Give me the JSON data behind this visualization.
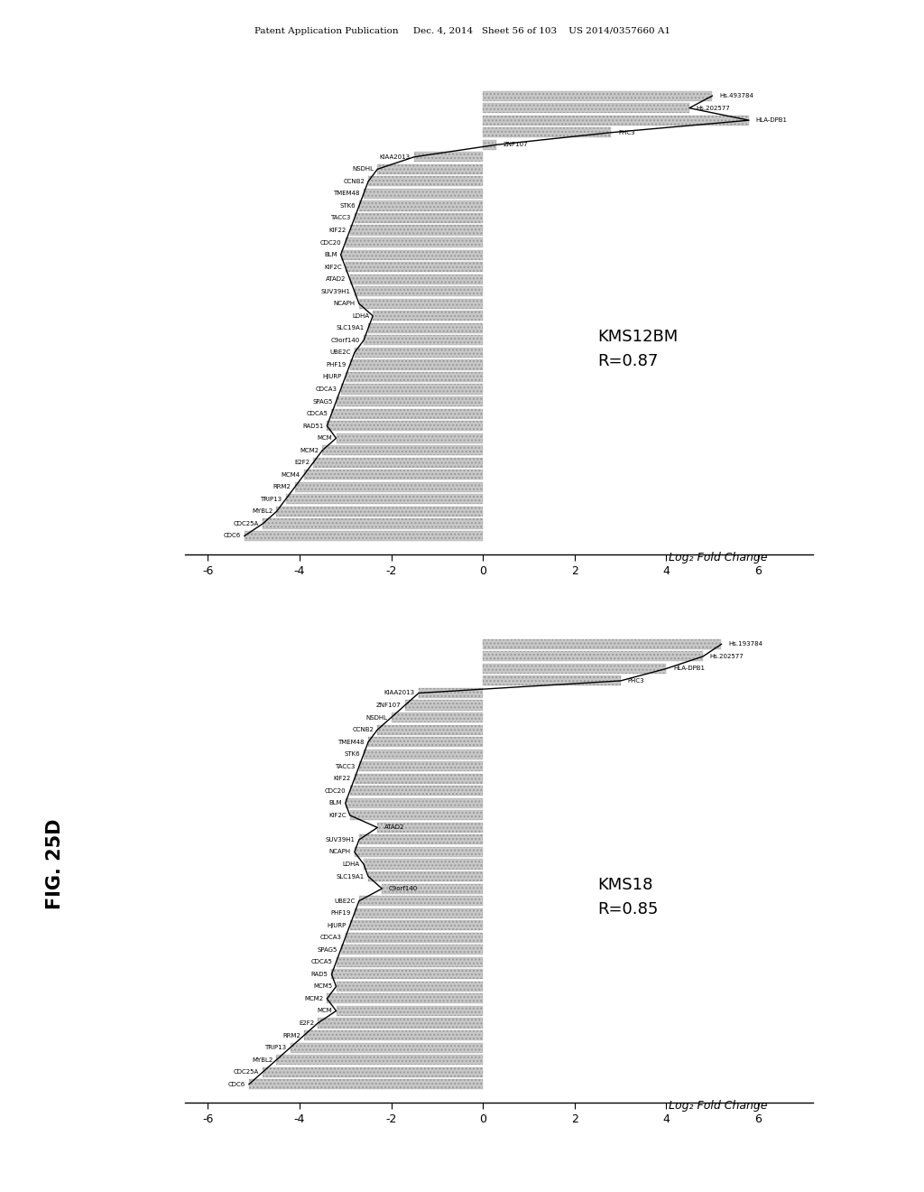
{
  "header_text": "Patent Application Publication     Dec. 4, 2014   Sheet 56 of 103    US 2014/0357660 A1",
  "fig_label": "FIG. 25D",
  "background_color": "#ffffff",
  "chart1": {
    "title_line1": "KMS12BM",
    "title_line2": "R=0.87",
    "xlabel": "Log₂ Fold Change",
    "genes": [
      {
        "name": "Hs.493784",
        "value": 5.0,
        "label_side": "right"
      },
      {
        "name": "Hs.202577",
        "value": 4.5,
        "label_side": "right"
      },
      {
        "name": "HLA-DPB1",
        "value": 5.8,
        "label_side": "right"
      },
      {
        "name": "PHC3",
        "value": 2.8,
        "label_side": "right"
      },
      {
        "name": "ZNF107",
        "value": 0.3,
        "label_side": "right"
      },
      {
        "name": "KIAA2013",
        "value": -1.5,
        "label_side": "left"
      },
      {
        "name": "NSDHL",
        "value": -2.3,
        "label_side": "left"
      },
      {
        "name": "CCNB2",
        "value": -2.5,
        "label_side": "left"
      },
      {
        "name": "TMEM48",
        "value": -2.6,
        "label_side": "left"
      },
      {
        "name": "STK6",
        "value": -2.7,
        "label_side": "left"
      },
      {
        "name": "TACC3",
        "value": -2.8,
        "label_side": "left"
      },
      {
        "name": "KIF22",
        "value": -2.9,
        "label_side": "left"
      },
      {
        "name": "CDC20",
        "value": -3.0,
        "label_side": "left"
      },
      {
        "name": "BLM",
        "value": -3.1,
        "label_side": "left"
      },
      {
        "name": "KIF2C",
        "value": -3.0,
        "label_side": "left"
      },
      {
        "name": "ATAD2",
        "value": -2.9,
        "label_side": "left"
      },
      {
        "name": "SUV39H1",
        "value": -2.8,
        "label_side": "left"
      },
      {
        "name": "NCAPH",
        "value": -2.7,
        "label_side": "left"
      },
      {
        "name": "LDHA",
        "value": -2.4,
        "label_side": "left"
      },
      {
        "name": "SLC19A1",
        "value": -2.5,
        "label_side": "left"
      },
      {
        "name": "C9orf140",
        "value": -2.6,
        "label_side": "left"
      },
      {
        "name": "UBE2C",
        "value": -2.8,
        "label_side": "left"
      },
      {
        "name": "PHF19",
        "value": -2.9,
        "label_side": "left"
      },
      {
        "name": "HJURP",
        "value": -3.0,
        "label_side": "left"
      },
      {
        "name": "CDCA3",
        "value": -3.1,
        "label_side": "left"
      },
      {
        "name": "SPAG5",
        "value": -3.2,
        "label_side": "left"
      },
      {
        "name": "CDCA5",
        "value": -3.3,
        "label_side": "left"
      },
      {
        "name": "RAD51",
        "value": -3.4,
        "label_side": "left"
      },
      {
        "name": "MCM",
        "value": -3.2,
        "label_side": "left"
      },
      {
        "name": "MCM2",
        "value": -3.5,
        "label_side": "left"
      },
      {
        "name": "E2F2",
        "value": -3.7,
        "label_side": "left"
      },
      {
        "name": "MCM4",
        "value": -3.9,
        "label_side": "left"
      },
      {
        "name": "RRM2",
        "value": -4.1,
        "label_side": "left"
      },
      {
        "name": "TRIP13",
        "value": -4.3,
        "label_side": "left"
      },
      {
        "name": "MYBL2",
        "value": -4.5,
        "label_side": "left"
      },
      {
        "name": "CDC25A",
        "value": -4.8,
        "label_side": "left"
      },
      {
        "name": "CDC6",
        "value": -5.2,
        "label_side": "left"
      }
    ]
  },
  "chart2": {
    "title_line1": "KMS18",
    "title_line2": "R=0.85",
    "xlabel": "Log₂ Fold Change",
    "genes": [
      {
        "name": "Hs.193784",
        "value": 5.2,
        "label_side": "right"
      },
      {
        "name": "Hs.202577",
        "value": 4.8,
        "label_side": "right"
      },
      {
        "name": "HLA-DPB1",
        "value": 4.0,
        "label_side": "right"
      },
      {
        "name": "PHC3",
        "value": 3.0,
        "label_side": "right"
      },
      {
        "name": "KIAA2013",
        "value": -1.4,
        "label_side": "left"
      },
      {
        "name": "ZNF107",
        "value": -1.7,
        "label_side": "left"
      },
      {
        "name": "NSDHL",
        "value": -2.0,
        "label_side": "left"
      },
      {
        "name": "CCNB2",
        "value": -2.3,
        "label_side": "left"
      },
      {
        "name": "TMEM48",
        "value": -2.5,
        "label_side": "left"
      },
      {
        "name": "STK6",
        "value": -2.6,
        "label_side": "left"
      },
      {
        "name": "TACC3",
        "value": -2.7,
        "label_side": "left"
      },
      {
        "name": "KIF22",
        "value": -2.8,
        "label_side": "left"
      },
      {
        "name": "CDC20",
        "value": -2.9,
        "label_side": "left"
      },
      {
        "name": "BLM",
        "value": -3.0,
        "label_side": "left"
      },
      {
        "name": "KIF2C",
        "value": -2.9,
        "label_side": "left"
      },
      {
        "name": "ATAD2",
        "value": -2.3,
        "label_side": "right"
      },
      {
        "name": "SUV39H1",
        "value": -2.7,
        "label_side": "left"
      },
      {
        "name": "NCAPH",
        "value": -2.8,
        "label_side": "left"
      },
      {
        "name": "LDHA",
        "value": -2.6,
        "label_side": "left"
      },
      {
        "name": "SLC19A1",
        "value": -2.5,
        "label_side": "left"
      },
      {
        "name": "C9orf140",
        "value": -2.2,
        "label_side": "right"
      },
      {
        "name": "UBE2C",
        "value": -2.7,
        "label_side": "left"
      },
      {
        "name": "PHF19",
        "value": -2.8,
        "label_side": "left"
      },
      {
        "name": "HJURP",
        "value": -2.9,
        "label_side": "left"
      },
      {
        "name": "CDCA3",
        "value": -3.0,
        "label_side": "left"
      },
      {
        "name": "SPAG5",
        "value": -3.1,
        "label_side": "left"
      },
      {
        "name": "CDCA5",
        "value": -3.2,
        "label_side": "left"
      },
      {
        "name": "RAD5",
        "value": -3.3,
        "label_side": "left"
      },
      {
        "name": "MCM5",
        "value": -3.2,
        "label_side": "left"
      },
      {
        "name": "MCM2",
        "value": -3.4,
        "label_side": "left"
      },
      {
        "name": "MCM",
        "value": -3.2,
        "label_side": "left"
      },
      {
        "name": "E2F2",
        "value": -3.6,
        "label_side": "left"
      },
      {
        "name": "RRM2",
        "value": -3.9,
        "label_side": "left"
      },
      {
        "name": "TRIP13",
        "value": -4.2,
        "label_side": "left"
      },
      {
        "name": "MYBL2",
        "value": -4.5,
        "label_side": "left"
      },
      {
        "name": "CDC25A",
        "value": -4.8,
        "label_side": "left"
      },
      {
        "name": "CDC6",
        "value": -5.1,
        "label_side": "left"
      }
    ]
  }
}
